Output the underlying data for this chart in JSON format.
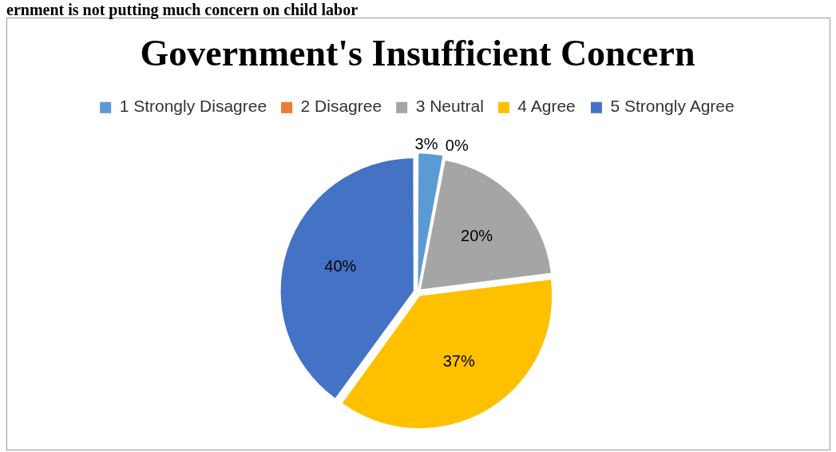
{
  "chart_data": {
    "type": "pie",
    "title": "Government's Insufficient Concern",
    "annotations": [
      "ernment is not putting much concern on child labor"
    ],
    "categories": [
      "1 Strongly Disagree",
      "2 Disagree",
      "3 Neutral",
      "4 Agree",
      "5 Strongly Agree"
    ],
    "values": [
      3,
      0,
      20,
      37,
      40
    ],
    "colors": [
      "#5b9bd5",
      "#ed7d31",
      "#a5a5a5",
      "#ffc000",
      "#4472c4"
    ],
    "value_labels": [
      "3%",
      "0%",
      "20%",
      "37%",
      "40%"
    ],
    "legend": "top"
  }
}
